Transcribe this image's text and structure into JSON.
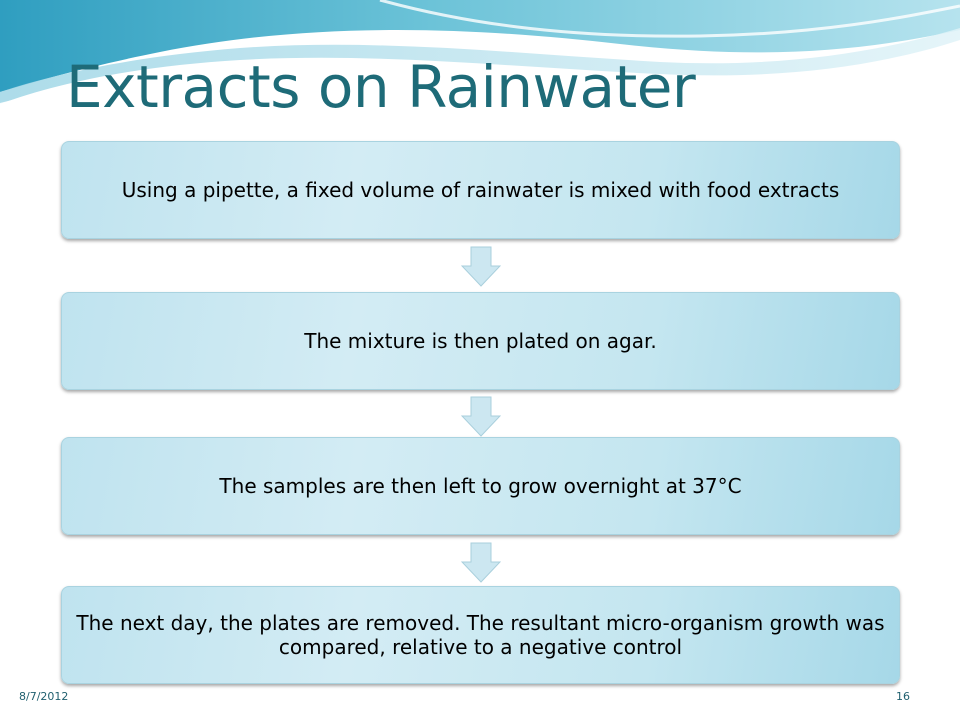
{
  "slide": {
    "title": "Extracts on Rainwater",
    "steps": [
      "Using a pipette,  a fixed volume of rainwater is mixed with food extracts",
      "The mixture is then plated on agar.",
      "The samples are then left to grow overnight at 37°C",
      "The next day, the plates are removed. The resultant micro-organism growth was compared, relative to a negative control"
    ],
    "footer": {
      "date": "8/7/2012",
      "page_number": "16"
    }
  },
  "colors": {
    "title": "#1e6b78",
    "box_fill": "#c4e6f0",
    "arrow_fill": "#cce7f1",
    "swoosh_dark": "#3aa6c4",
    "swoosh_light": "#bfe6ef"
  }
}
